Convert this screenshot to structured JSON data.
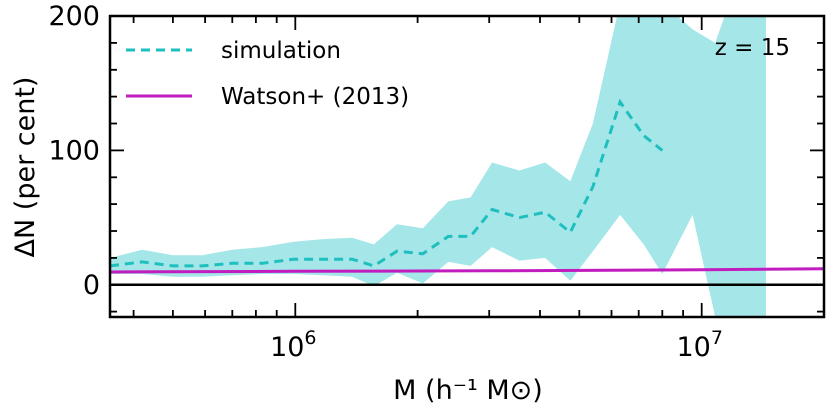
{
  "chart_data": {
    "type": "line",
    "xscale": "log",
    "xlim": [
      350000,
      20000000
    ],
    "ylim": [
      -24,
      200
    ],
    "xlabel": "M (h⁻¹ M⊙)",
    "ylabel": "ΔN (per cent)",
    "x_tick_labels": [
      {
        "value": 1000000,
        "base": "10",
        "exp": "6"
      },
      {
        "value": 10000000,
        "base": "10",
        "exp": "7"
      }
    ],
    "y_ticks": [
      0,
      100,
      200
    ],
    "y_tick_labels": [
      "0",
      "100",
      "200"
    ],
    "annotation": "z = 15",
    "reference_line": 0,
    "series": [
      {
        "name": "simulation",
        "style": "dashed",
        "color": "#1fbfbf",
        "band_color": "#a5e6e8",
        "x": [
          350000,
          420000,
          500000,
          590000,
          700000,
          830000,
          990000,
          1170000,
          1380000,
          1560000,
          1780000,
          2060000,
          2380000,
          2700000,
          3050000,
          3560000,
          4120000,
          4750000,
          5400000,
          6300000,
          7200000,
          8000000
        ],
        "y": [
          14,
          17,
          14,
          14,
          16,
          16,
          19,
          19,
          19,
          14,
          25,
          23,
          36,
          36,
          56,
          50,
          54,
          39,
          73,
          136,
          111,
          100
        ],
        "band_x": [
          350000,
          420000,
          500000,
          590000,
          700000,
          830000,
          990000,
          1170000,
          1380000,
          1560000,
          1780000,
          2060000,
          2380000,
          2700000,
          3050000,
          3560000,
          4120000,
          4750000,
          5400000,
          6300000,
          7200000,
          8000000,
          9500000,
          10800000,
          11700000,
          14400000
        ],
        "band_upper": [
          20,
          26,
          22,
          22,
          26,
          28,
          32,
          34,
          35,
          30,
          45,
          42,
          62,
          65,
          91,
          85,
          91,
          77,
          120,
          210,
          210,
          210,
          190,
          180,
          210,
          210
        ],
        "band_lower": [
          8,
          8,
          6,
          6,
          7,
          8,
          8,
          7,
          6,
          -1,
          9,
          1,
          17,
          14,
          28,
          18,
          20,
          3,
          25,
          52,
          30,
          8,
          52,
          -24,
          -24,
          -24
        ]
      },
      {
        "name": "Watson+ (2013)",
        "style": "solid",
        "color": "#c21cbf",
        "x": [
          350000,
          1000000,
          3000000,
          10000000,
          20000000
        ],
        "y": [
          9.5,
          10,
          10.4,
          11.1,
          11.9
        ]
      }
    ]
  }
}
